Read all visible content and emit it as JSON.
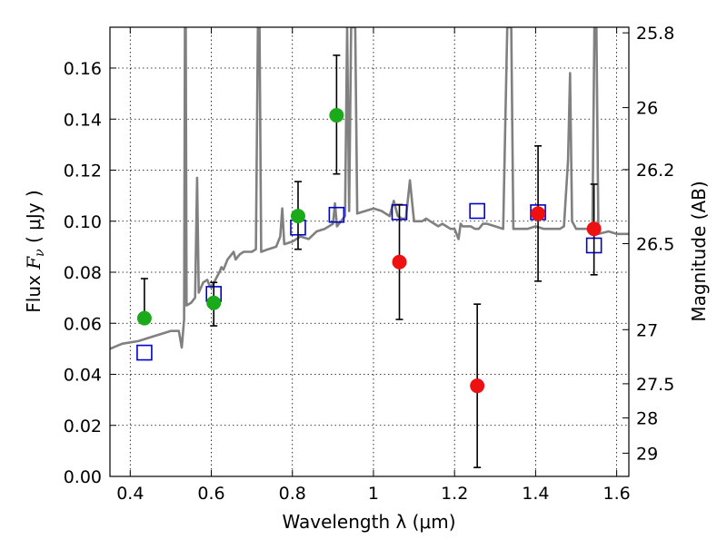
{
  "chart_data": {
    "type": "scatter",
    "title": "",
    "xlabel": "Wavelength  λ (μm)",
    "ylabel": "Flux  F_ν  ( μJy )",
    "ylabel_parts": {
      "pre": "Flux  ",
      "F": "F",
      "nu": "ν",
      "post": "  ( μJy )"
    },
    "y2label": "Magnitude (AB)",
    "xlim": [
      0.35,
      1.63
    ],
    "ylim": [
      0.0,
      0.176
    ],
    "grid": true,
    "x_ticks": [
      0.4,
      0.6,
      0.8,
      1.0,
      1.2,
      1.4,
      1.6
    ],
    "x_tick_labels": [
      "0.4",
      "0.6",
      "0.8",
      "1",
      "1.2",
      "1.4",
      "1.6"
    ],
    "y_ticks": [
      0.0,
      0.02,
      0.04,
      0.06,
      0.08,
      0.1,
      0.12,
      0.14,
      0.16
    ],
    "y_tick_labels": [
      "0.00",
      "0.02",
      "0.04",
      "0.06",
      "0.08",
      "0.10",
      "0.12",
      "0.14",
      "0.16"
    ],
    "y2_ticks": [
      {
        "label": "25.8",
        "flux": 0.1738
      },
      {
        "label": "26",
        "flux": 0.1445
      },
      {
        "label": "26.2",
        "flux": 0.1202
      },
      {
        "label": "26.5",
        "flux": 0.0912
      },
      {
        "label": "27",
        "flux": 0.0575
      },
      {
        "label": "27.5",
        "flux": 0.0363
      },
      {
        "label": "28",
        "flux": 0.0229
      },
      {
        "label": "29",
        "flux": 0.0091
      }
    ],
    "colors": {
      "green_points": "#1aaa1a",
      "red_points": "#ee1111",
      "model_squares": "#0000cc",
      "model_spectrum": "#808080",
      "error_bars": "#000000"
    },
    "series": [
      {
        "marker": "circle",
        "color": "green",
        "points": [
          {
            "x": 0.435,
            "y": 0.062,
            "err_low": 0.062,
            "err_high": 0.0775
          },
          {
            "x": 0.606,
            "y": 0.068,
            "err_low": 0.059,
            "err_high": 0.076
          },
          {
            "x": 0.814,
            "y": 0.102,
            "err_low": 0.089,
            "err_high": 0.1155
          },
          {
            "x": 0.909,
            "y": 0.1415,
            "err_low": 0.1185,
            "err_high": 0.165
          }
        ]
      },
      {
        "marker": "circle",
        "color": "red",
        "points": [
          {
            "x": 1.064,
            "y": 0.084,
            "err_low": 0.0615,
            "err_high": 0.1065
          },
          {
            "x": 1.256,
            "y": 0.0355,
            "err_low": 0.0035,
            "err_high": 0.0675
          },
          {
            "x": 1.406,
            "y": 0.103,
            "err_low": 0.0765,
            "err_high": 0.1295
          },
          {
            "x": 1.544,
            "y": 0.097,
            "err_low": 0.079,
            "err_high": 0.1145
          }
        ]
      },
      {
        "marker": "square",
        "color": "blue",
        "points": [
          {
            "x": 0.435,
            "y": 0.0485
          },
          {
            "x": 0.606,
            "y": 0.0715
          },
          {
            "x": 0.814,
            "y": 0.0975
          },
          {
            "x": 0.909,
            "y": 0.1025
          },
          {
            "x": 1.064,
            "y": 0.1035
          },
          {
            "x": 1.256,
            "y": 0.104
          },
          {
            "x": 1.406,
            "y": 0.1035
          },
          {
            "x": 1.544,
            "y": 0.0905
          }
        ]
      },
      {
        "marker": "line",
        "color": "gray",
        "points": [
          [
            0.35,
            0.05
          ],
          [
            0.38,
            0.052
          ],
          [
            0.42,
            0.053
          ],
          [
            0.46,
            0.055
          ],
          [
            0.5,
            0.057
          ],
          [
            0.52,
            0.057
          ],
          [
            0.527,
            0.0505
          ],
          [
            0.533,
            0.0615
          ],
          [
            0.535,
            0.176
          ],
          [
            0.537,
            0.176
          ],
          [
            0.539,
            0.067
          ],
          [
            0.55,
            0.068
          ],
          [
            0.56,
            0.07
          ],
          [
            0.565,
            0.117
          ],
          [
            0.569,
            0.072
          ],
          [
            0.58,
            0.076
          ],
          [
            0.59,
            0.077
          ],
          [
            0.595,
            0.075
          ],
          [
            0.6,
            0.074
          ],
          [
            0.61,
            0.077
          ],
          [
            0.62,
            0.08
          ],
          [
            0.625,
            0.082
          ],
          [
            0.63,
            0.081
          ],
          [
            0.64,
            0.085
          ],
          [
            0.655,
            0.088
          ],
          [
            0.66,
            0.085
          ],
          [
            0.67,
            0.087
          ],
          [
            0.68,
            0.088
          ],
          [
            0.7,
            0.088
          ],
          [
            0.71,
            0.089
          ],
          [
            0.715,
            0.176
          ],
          [
            0.719,
            0.176
          ],
          [
            0.723,
            0.088
          ],
          [
            0.74,
            0.089
          ],
          [
            0.76,
            0.09
          ],
          [
            0.77,
            0.094
          ],
          [
            0.775,
            0.105
          ],
          [
            0.78,
            0.091
          ],
          [
            0.8,
            0.092
          ],
          [
            0.82,
            0.094
          ],
          [
            0.84,
            0.093
          ],
          [
            0.86,
            0.096
          ],
          [
            0.88,
            0.097
          ],
          [
            0.9,
            0.099
          ],
          [
            0.905,
            0.107
          ],
          [
            0.91,
            0.098
          ],
          [
            0.93,
            0.102
          ],
          [
            0.935,
            0.176
          ],
          [
            0.94,
            0.104
          ],
          [
            0.945,
            0.176
          ],
          [
            0.955,
            0.176
          ],
          [
            0.96,
            0.103
          ],
          [
            0.98,
            0.104
          ],
          [
            1.0,
            0.105
          ],
          [
            1.02,
            0.104
          ],
          [
            1.03,
            0.103
          ],
          [
            1.04,
            0.102
          ],
          [
            1.05,
            0.108
          ],
          [
            1.06,
            0.102
          ],
          [
            1.07,
            0.101
          ],
          [
            1.08,
            0.101
          ],
          [
            1.09,
            0.116
          ],
          [
            1.1,
            0.1
          ],
          [
            1.12,
            0.1
          ],
          [
            1.13,
            0.101
          ],
          [
            1.14,
            0.1
          ],
          [
            1.16,
            0.098
          ],
          [
            1.17,
            0.099
          ],
          [
            1.18,
            0.098
          ],
          [
            1.19,
            0.097
          ],
          [
            1.2,
            0.097
          ],
          [
            1.21,
            0.093
          ],
          [
            1.215,
            0.099
          ],
          [
            1.22,
            0.098
          ],
          [
            1.24,
            0.098
          ],
          [
            1.25,
            0.097
          ],
          [
            1.26,
            0.097
          ],
          [
            1.27,
            0.099
          ],
          [
            1.28,
            0.099
          ],
          [
            1.3,
            0.098
          ],
          [
            1.32,
            0.097
          ],
          [
            1.33,
            0.176
          ],
          [
            1.34,
            0.176
          ],
          [
            1.345,
            0.097
          ],
          [
            1.36,
            0.097
          ],
          [
            1.38,
            0.097
          ],
          [
            1.4,
            0.098
          ],
          [
            1.42,
            0.097
          ],
          [
            1.44,
            0.097
          ],
          [
            1.46,
            0.097
          ],
          [
            1.47,
            0.098
          ],
          [
            1.48,
            0.124
          ],
          [
            1.485,
            0.158
          ],
          [
            1.49,
            0.1
          ],
          [
            1.5,
            0.097
          ],
          [
            1.52,
            0.097
          ],
          [
            1.54,
            0.097
          ],
          [
            1.545,
            0.176
          ],
          [
            1.55,
            0.176
          ],
          [
            1.555,
            0.095
          ],
          [
            1.58,
            0.096
          ],
          [
            1.6,
            0.095
          ],
          [
            1.63,
            0.095
          ]
        ]
      }
    ]
  }
}
